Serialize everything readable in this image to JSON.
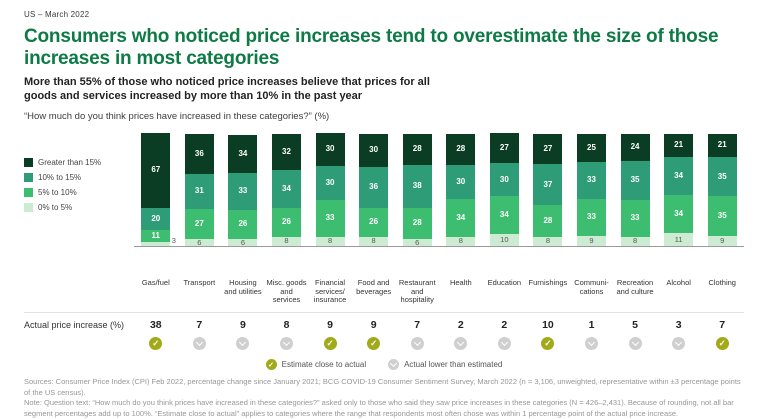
{
  "meta": {
    "region_date": "US – March 2022"
  },
  "title": "Consumers who noticed price increases tend to overestimate the size of those increases in most categories",
  "subtitle": "More than 55% of those who noticed price increases believe that prices for all goods and services increased by more than 10% in the past year",
  "question": "“How much do you think prices have increased in these categories?” (%)",
  "colors": {
    "title_green": "#0E7A46",
    "check_green": "#A1AA19",
    "check_gray": "#CFCFCF"
  },
  "chart_data": {
    "type": "bar",
    "stacked": true,
    "grid": false,
    "legend_position": "left",
    "ylim": [
      0,
      100
    ],
    "categories": [
      "Gas/fuel",
      "Transport",
      "Housing and utilities",
      "Misc. goods and services",
      "Financial services/ insurance",
      "Food and beverages",
      "Restaurant and hospitality",
      "Health",
      "Education",
      "Furnishings",
      "Communi-cations",
      "Recreation and culture",
      "Alcohol",
      "Clothing"
    ],
    "series": [
      {
        "name": "Greater than 15%",
        "color": "#0B3D24",
        "values": [
          67,
          36,
          34,
          32,
          30,
          30,
          28,
          28,
          27,
          27,
          25,
          24,
          21,
          21
        ]
      },
      {
        "name": "10% to 15%",
        "color": "#2E9C77",
        "values": [
          20,
          31,
          33,
          34,
          30,
          36,
          38,
          30,
          30,
          37,
          33,
          35,
          34,
          35
        ]
      },
      {
        "name": "5% to 10%",
        "color": "#3DBD70",
        "values": [
          11,
          27,
          26,
          26,
          33,
          26,
          28,
          34,
          34,
          28,
          33,
          33,
          34,
          35
        ]
      },
      {
        "name": "0% to 5%",
        "color": "#CDEAD3",
        "values": [
          3,
          6,
          6,
          8,
          8,
          8,
          6,
          8,
          10,
          8,
          9,
          8,
          11,
          9
        ]
      }
    ],
    "actual_price_increase": [
      38,
      7,
      9,
      8,
      9,
      9,
      7,
      2,
      2,
      10,
      1,
      5,
      3,
      7
    ],
    "estimate_close": [
      true,
      false,
      false,
      false,
      true,
      true,
      false,
      false,
      false,
      true,
      false,
      false,
      false,
      true
    ]
  },
  "actual_row_label": "Actual price increase (%)",
  "check_legend": {
    "close": "Estimate close to actual",
    "lower": "Actual lower than estimated"
  },
  "footer": {
    "sources": "Sources: Consumer Price Index (CPI) Feb 2022, percentage change since January 2021; BCG COVID-19 Consumer Sentiment Survey, March 2022 (n = 3,106, unweighted, representative within ±3 percentage points of the US census).",
    "note": "Note: Question text: “How much do you think prices have increased in these categories?” asked only to those who said they saw price increases in these categories (N = 426–2,431). Because of rounding, not all bar segment percentages add up to 100%. “Estimate close to actual” applies to categories where the range that respondents most often chose was within 1 percentage point of the actual price increase."
  }
}
